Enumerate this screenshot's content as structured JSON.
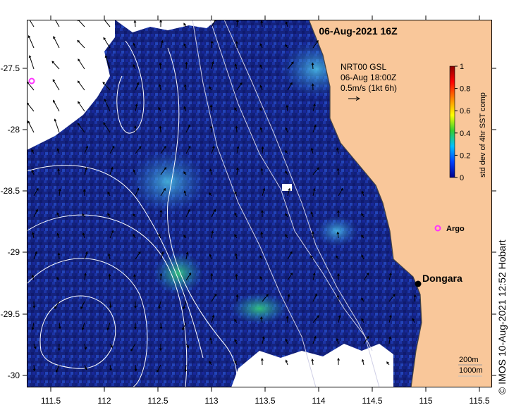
{
  "title": "06-Aug-2021 16Z",
  "current_legend": {
    "line1": "NRT00 GSL",
    "line2": "06-Aug 18:00Z",
    "line3": "0.5m/s (1kt 6h)"
  },
  "colorbar": {
    "label": "std dev of 4hr SST comp",
    "ticks": [
      "1",
      "0.8",
      "0.6",
      "0.4",
      "0.2",
      "0"
    ],
    "colors": [
      "#8b0000",
      "#ff0000",
      "#ff8c00",
      "#ffff00",
      "#32cd32",
      "#00bfff",
      "#0040ff",
      "#00008b"
    ]
  },
  "places": {
    "dongara": "Dongara",
    "argo": "Argo"
  },
  "depth_legend": {
    "line1": "200m",
    "line2": "1000m"
  },
  "credit": "© IMOS 10-Aug-2021 12:52 Hobart",
  "axes": {
    "x_ticks": [
      "111.5",
      "112",
      "112.5",
      "113",
      "113.5",
      "114",
      "114.5",
      "115",
      "115.5"
    ],
    "y_ticks": [
      "-27.5",
      "-28",
      "-28.5",
      "-29",
      "-29.5",
      "-30"
    ]
  },
  "colors": {
    "ocean_base": "#1a2a8c",
    "land": "#f9c79a",
    "cloud": "#ffffff",
    "argo": "#ff33ff"
  }
}
